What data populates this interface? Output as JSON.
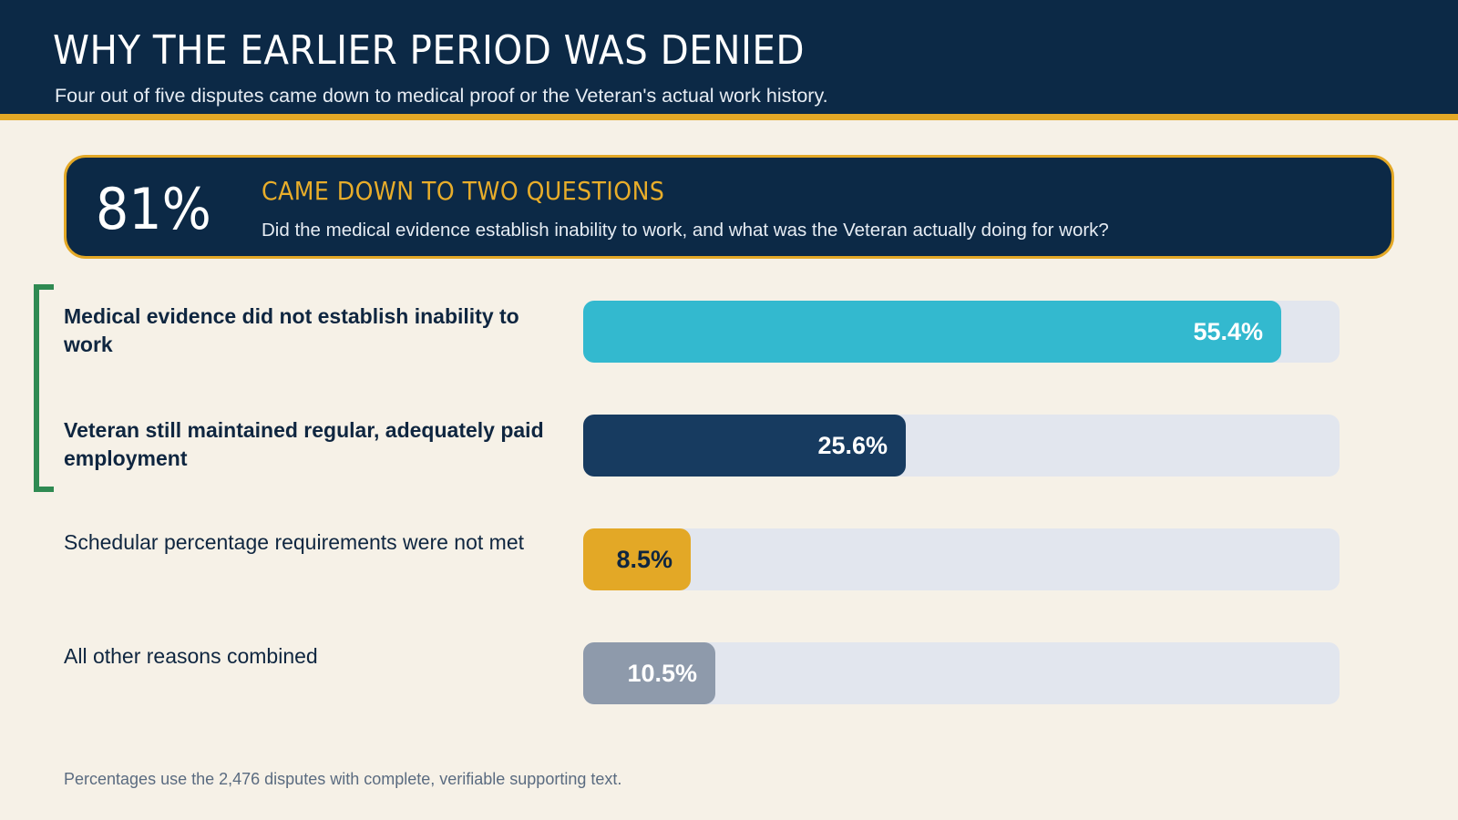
{
  "header": {
    "title": "WHY THE EARLIER PERIOD WAS DENIED",
    "subtitle": "Four out of five disputes came down to medical proof or the Veteran's actual work history."
  },
  "callout": {
    "stat": "81%",
    "heading": "CAME DOWN TO TWO QUESTIONS",
    "body": "Did the medical evidence establish inability to work, and what was the Veteran actually doing for work?"
  },
  "footnote": "Percentages use the 2,476 disputes with complete, verifiable supporting text.",
  "chart_data": {
    "type": "bar",
    "orientation": "horizontal",
    "unit": "%",
    "xlim": [
      0,
      60
    ],
    "categories": [
      "Medical evidence did not establish inability to work",
      "Veteran still maintained regular, adequately paid employment",
      "Schedular percentage requirements were not met",
      "All other reasons combined"
    ],
    "values": [
      55.4,
      25.6,
      8.5,
      10.5
    ],
    "value_labels": [
      "55.4%",
      "25.6%",
      "8.5%",
      "10.5%"
    ],
    "colors": [
      "#33b9cf",
      "#173b60",
      "#e3a826",
      "#8e9aab"
    ],
    "label_colors": [
      "#ffffff",
      "#ffffff",
      "#0f2640",
      "#ffffff"
    ],
    "emphasized": [
      true,
      true,
      false,
      false
    ],
    "bracket_color": "#2f8a52"
  }
}
